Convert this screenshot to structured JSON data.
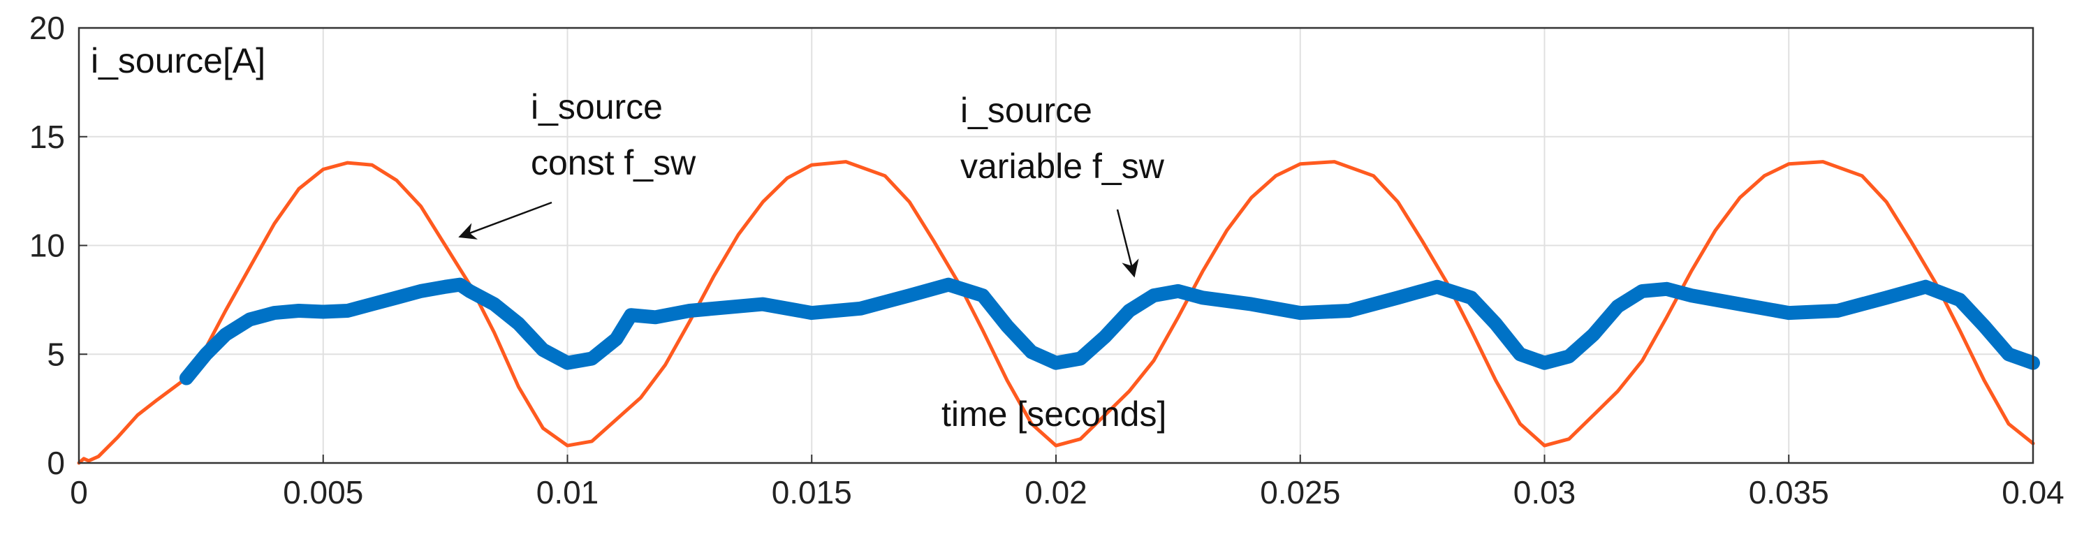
{
  "chart_data": {
    "type": "line",
    "title": "",
    "ylabel": "i_source[A]",
    "xlabel": "time [seconds]",
    "xlim": [
      0,
      0.04
    ],
    "ylim": [
      0,
      20
    ],
    "grid": true,
    "x_ticks": [
      0,
      0.005,
      0.01,
      0.015,
      0.02,
      0.025,
      0.03,
      0.035,
      0.04
    ],
    "x_tick_labels": [
      "0",
      "0.005",
      "0.01",
      "0.015",
      "0.02",
      "0.025",
      "0.03",
      "0.035",
      "0.04"
    ],
    "y_ticks": [
      0,
      5,
      10,
      15,
      20
    ],
    "y_tick_labels": [
      "0",
      "5",
      "10",
      "15",
      "20"
    ],
    "series": [
      {
        "label": "i_source const f_sw",
        "color": "#ff5a1f",
        "points": [
          [
            0,
            0.0
          ],
          [
            0.0001,
            0.2
          ],
          [
            0.0002,
            0.1
          ],
          [
            0.0004,
            0.3
          ],
          [
            0.0008,
            1.2
          ],
          [
            0.0012,
            2.2
          ],
          [
            0.0016,
            2.9
          ],
          [
            0.0022,
            3.9
          ],
          [
            0.0026,
            5.3
          ],
          [
            0.003,
            7.0
          ],
          [
            0.0035,
            9.0
          ],
          [
            0.004,
            11.0
          ],
          [
            0.0045,
            12.6
          ],
          [
            0.005,
            13.5
          ],
          [
            0.0055,
            13.8
          ],
          [
            0.006,
            13.7
          ],
          [
            0.0065,
            13.0
          ],
          [
            0.007,
            11.8
          ],
          [
            0.0075,
            10.0
          ],
          [
            0.008,
            8.2
          ],
          [
            0.0085,
            6.0
          ],
          [
            0.009,
            3.5
          ],
          [
            0.0095,
            1.6
          ],
          [
            0.01,
            0.8
          ],
          [
            0.0105,
            1.0
          ],
          [
            0.011,
            2.0
          ],
          [
            0.0115,
            3.0
          ],
          [
            0.012,
            4.5
          ],
          [
            0.0125,
            6.5
          ],
          [
            0.013,
            8.6
          ],
          [
            0.0135,
            10.5
          ],
          [
            0.014,
            12.0
          ],
          [
            0.0145,
            13.1
          ],
          [
            0.015,
            13.7
          ],
          [
            0.0157,
            13.85
          ],
          [
            0.0165,
            13.2
          ],
          [
            0.017,
            12.0
          ],
          [
            0.0175,
            10.2
          ],
          [
            0.018,
            8.3
          ],
          [
            0.0185,
            6.1
          ],
          [
            0.019,
            3.8
          ],
          [
            0.0195,
            1.8
          ],
          [
            0.02,
            0.8
          ],
          [
            0.0205,
            1.1
          ],
          [
            0.021,
            2.2
          ],
          [
            0.0215,
            3.3
          ],
          [
            0.022,
            4.7
          ],
          [
            0.0225,
            6.7
          ],
          [
            0.023,
            8.8
          ],
          [
            0.0235,
            10.7
          ],
          [
            0.024,
            12.2
          ],
          [
            0.0245,
            13.2
          ],
          [
            0.025,
            13.75
          ],
          [
            0.0257,
            13.85
          ],
          [
            0.0265,
            13.2
          ],
          [
            0.027,
            12.0
          ],
          [
            0.0275,
            10.2
          ],
          [
            0.028,
            8.3
          ],
          [
            0.0285,
            6.1
          ],
          [
            0.029,
            3.8
          ],
          [
            0.0295,
            1.8
          ],
          [
            0.03,
            0.8
          ],
          [
            0.0305,
            1.1
          ],
          [
            0.031,
            2.2
          ],
          [
            0.0315,
            3.3
          ],
          [
            0.032,
            4.7
          ],
          [
            0.0325,
            6.7
          ],
          [
            0.033,
            8.8
          ],
          [
            0.0335,
            10.7
          ],
          [
            0.034,
            12.2
          ],
          [
            0.0345,
            13.2
          ],
          [
            0.035,
            13.75
          ],
          [
            0.0357,
            13.85
          ],
          [
            0.0365,
            13.2
          ],
          [
            0.037,
            12.0
          ],
          [
            0.0375,
            10.2
          ],
          [
            0.038,
            8.3
          ],
          [
            0.0385,
            6.1
          ],
          [
            0.039,
            3.8
          ],
          [
            0.0395,
            1.8
          ],
          [
            0.04,
            0.9
          ]
        ]
      },
      {
        "label": "i_source variable f_sw",
        "color": "#0072c6",
        "points": [
          [
            0.0022,
            3.9
          ],
          [
            0.0026,
            5.0
          ],
          [
            0.003,
            5.9
          ],
          [
            0.0035,
            6.6
          ],
          [
            0.004,
            6.9
          ],
          [
            0.0045,
            7.0
          ],
          [
            0.005,
            6.95
          ],
          [
            0.0055,
            7.0
          ],
          [
            0.006,
            7.3
          ],
          [
            0.0065,
            7.6
          ],
          [
            0.007,
            7.9
          ],
          [
            0.0075,
            8.1
          ],
          [
            0.0078,
            8.2
          ],
          [
            0.008,
            7.9
          ],
          [
            0.0085,
            7.3
          ],
          [
            0.009,
            6.4
          ],
          [
            0.0095,
            5.2
          ],
          [
            0.01,
            4.6
          ],
          [
            0.0105,
            4.8
          ],
          [
            0.011,
            5.7
          ],
          [
            0.0113,
            6.8
          ],
          [
            0.0118,
            6.7
          ],
          [
            0.0125,
            7.0
          ],
          [
            0.013,
            7.1
          ],
          [
            0.014,
            7.3
          ],
          [
            0.015,
            6.9
          ],
          [
            0.016,
            7.1
          ],
          [
            0.017,
            7.7
          ],
          [
            0.0178,
            8.2
          ],
          [
            0.0185,
            7.7
          ],
          [
            0.019,
            6.3
          ],
          [
            0.0195,
            5.1
          ],
          [
            0.02,
            4.6
          ],
          [
            0.0205,
            4.8
          ],
          [
            0.021,
            5.8
          ],
          [
            0.0215,
            7.0
          ],
          [
            0.022,
            7.7
          ],
          [
            0.0225,
            7.9
          ],
          [
            0.023,
            7.6
          ],
          [
            0.024,
            7.3
          ],
          [
            0.025,
            6.9
          ],
          [
            0.026,
            7.0
          ],
          [
            0.027,
            7.6
          ],
          [
            0.0278,
            8.1
          ],
          [
            0.0285,
            7.6
          ],
          [
            0.029,
            6.4
          ],
          [
            0.0295,
            5.0
          ],
          [
            0.03,
            4.6
          ],
          [
            0.0305,
            4.9
          ],
          [
            0.031,
            5.9
          ],
          [
            0.0315,
            7.2
          ],
          [
            0.032,
            7.9
          ],
          [
            0.0325,
            8.0
          ],
          [
            0.033,
            7.7
          ],
          [
            0.034,
            7.3
          ],
          [
            0.035,
            6.9
          ],
          [
            0.036,
            7.0
          ],
          [
            0.037,
            7.6
          ],
          [
            0.0378,
            8.1
          ],
          [
            0.0385,
            7.5
          ],
          [
            0.039,
            6.3
          ],
          [
            0.0395,
            5.0
          ],
          [
            0.04,
            4.6
          ]
        ]
      }
    ],
    "annotations": [
      {
        "lines": [
          "i_source",
          "const f_sw"
        ],
        "arrow_to": [
          0.0078,
          10.4
        ]
      },
      {
        "lines": [
          "i_source",
          "variable f_sw"
        ],
        "arrow_to": [
          0.0216,
          8.6
        ]
      }
    ]
  }
}
